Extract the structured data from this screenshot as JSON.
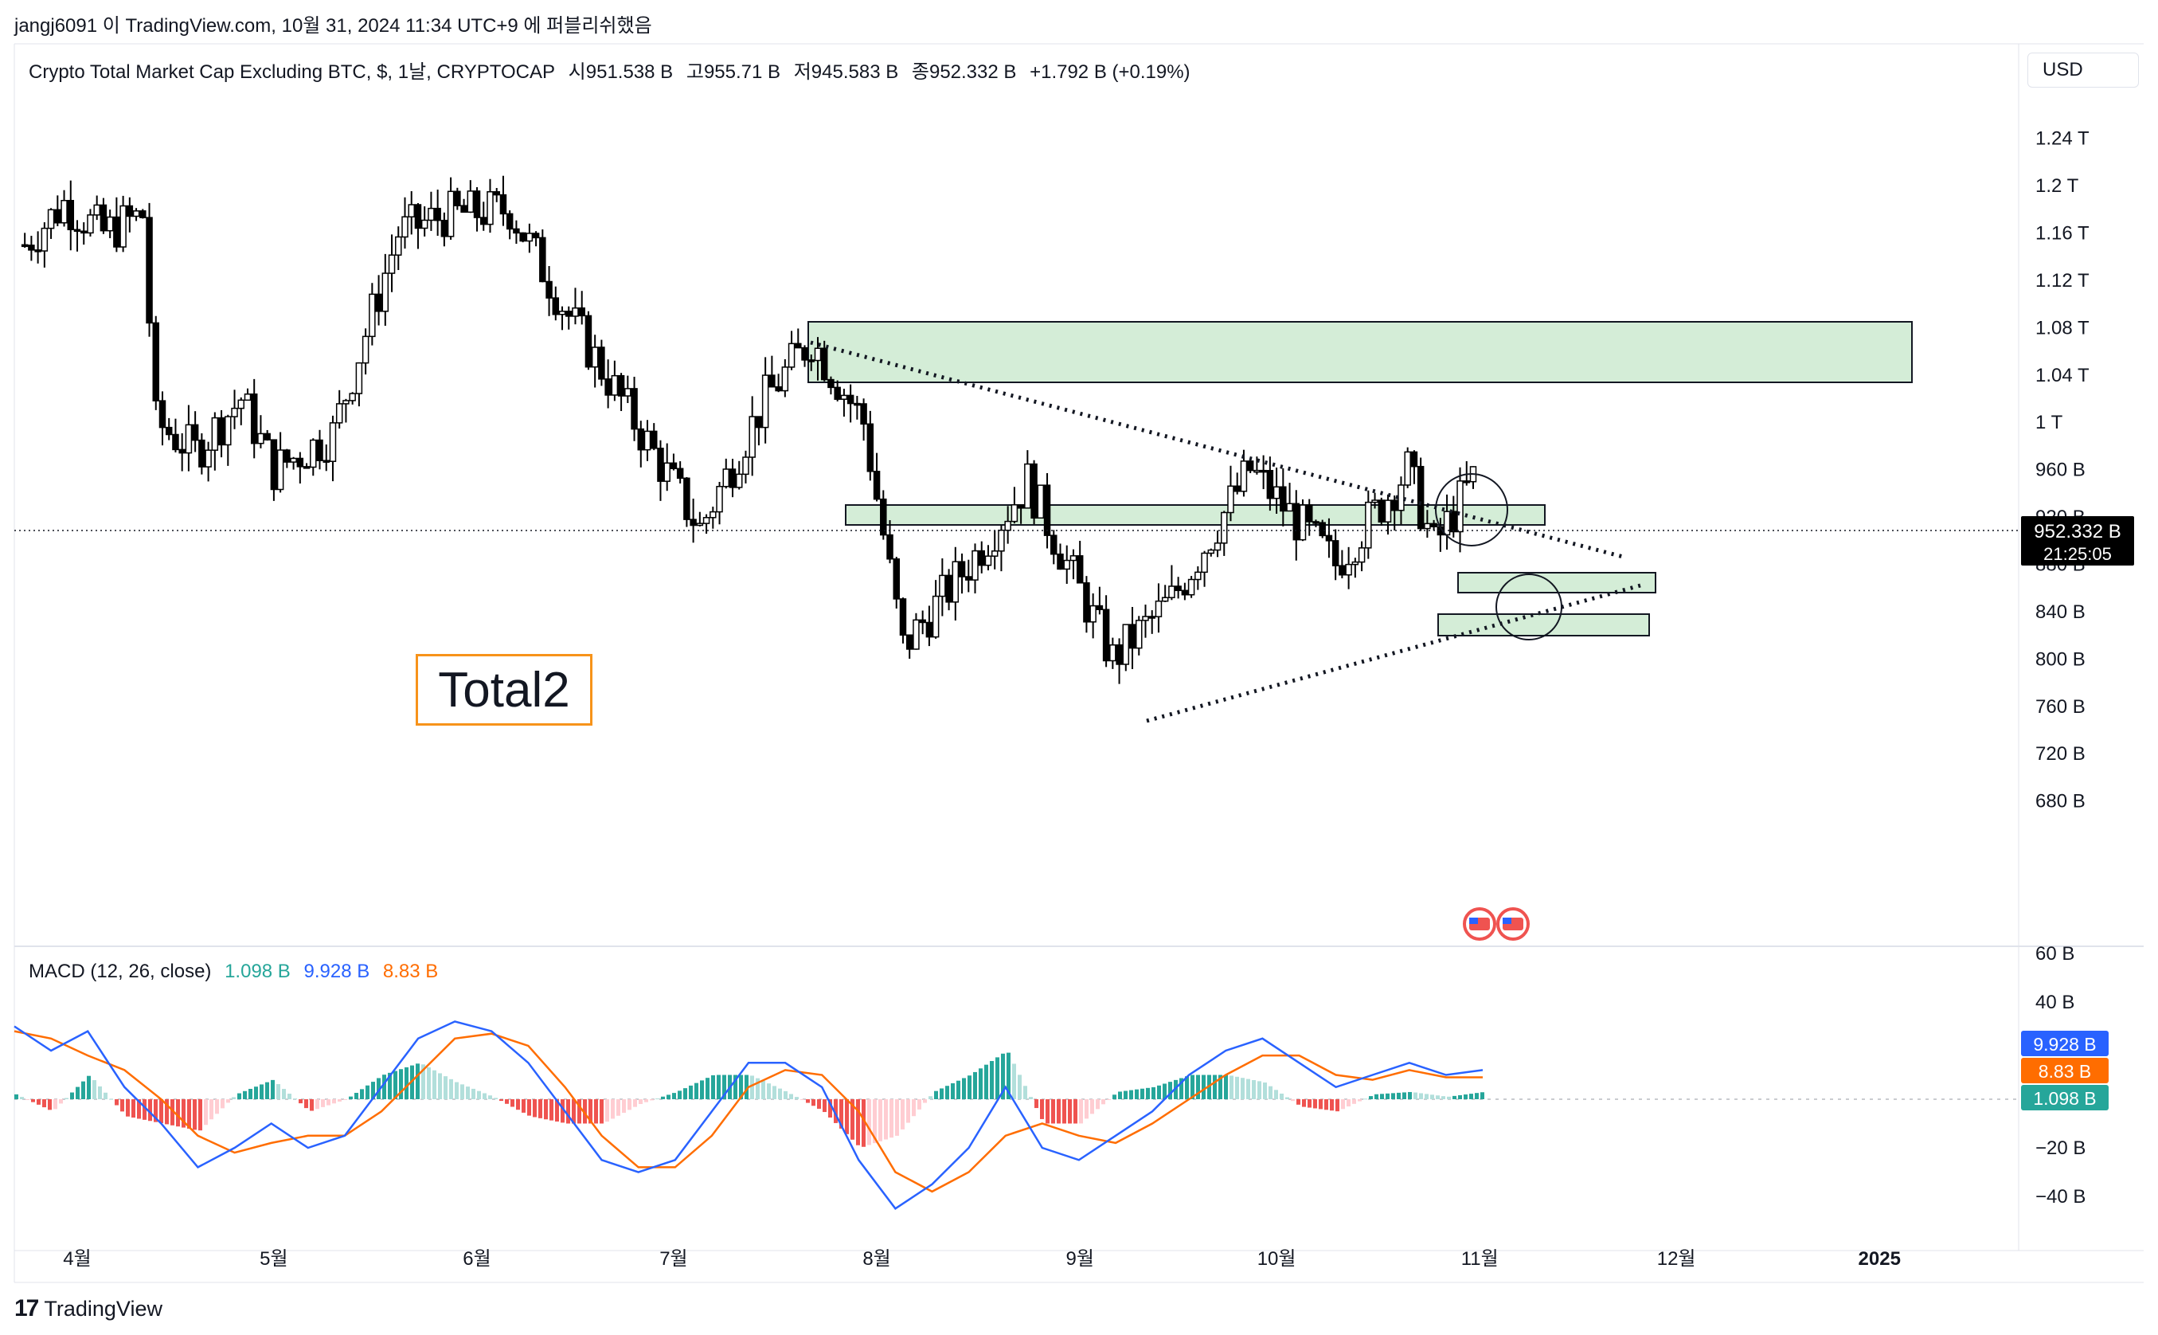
{
  "attribution": "jangj6091 이 TradingView.com, 10월 31, 2024 11:34 UTC+9 에 퍼블리쉬했음",
  "legend": {
    "symbol": "Crypto Total Market Cap Excluding BTC, $, 1날, CRYPTOCAP",
    "open": "시951.538 B",
    "high": "고955.71 B",
    "low": "저945.583 B",
    "close": "종952.332 B",
    "change": "+1.792 B (+0.19%)"
  },
  "currency": "USD",
  "annotation_text": "Total2",
  "macd_legend": {
    "label": "MACD (12, 26, close)",
    "histogram": "1.098 B",
    "macd": "9.928 B",
    "signal": "8.83 B"
  },
  "footer": {
    "logo": "17",
    "brand": "TradingView"
  },
  "colors": {
    "up": "#ffffff",
    "down": "#000000",
    "wick": "#000000",
    "zone_fill": "#d4edd7",
    "macd_line": "#2962ff",
    "signal_line": "#ff6d00",
    "hist_up_strong": "#26a69a",
    "hist_up_weak": "#b2dfdb",
    "hist_down_strong": "#ef5350",
    "hist_down_weak": "#ffcdd2",
    "annotation_border": "#f7931a"
  },
  "chart_data": [
    {
      "type": "candlestick",
      "title": "Crypto Total Market Cap Excluding BTC, $, 1날, CRYPTOCAP",
      "x_ticks": [
        "4월",
        "5월",
        "6월",
        "7월",
        "8월",
        "9월",
        "10월",
        "11월",
        "12월",
        "2025"
      ],
      "y_ticks": [
        "1.24 T",
        "1.2 T",
        "1.16 T",
        "1.12 T",
        "1.08 T",
        "1.04 T",
        "1 T",
        "960 B",
        "920 B",
        "880 B",
        "840 B",
        "800 B",
        "760 B",
        "720 B",
        "680 B"
      ],
      "y_unit": "B (billion USD)",
      "ylim": [
        675,
        1250
      ],
      "last_price": "952.332 B",
      "countdown": "21:25:05",
      "grid": false,
      "close_series_approx": [
        {
          "date": "2024-03-24",
          "close": 1150
        },
        {
          "date": "2024-03-30",
          "close": 1185
        },
        {
          "date": "2024-04-05",
          "close": 1160
        },
        {
          "date": "2024-04-11",
          "close": 1175
        },
        {
          "date": "2024-04-13",
          "close": 1000
        },
        {
          "date": "2024-04-19",
          "close": 975
        },
        {
          "date": "2024-04-26",
          "close": 1020
        },
        {
          "date": "2024-05-01",
          "close": 960
        },
        {
          "date": "2024-05-10",
          "close": 990
        },
        {
          "date": "2024-05-20",
          "close": 1160
        },
        {
          "date": "2024-05-27",
          "close": 1175
        },
        {
          "date": "2024-06-06",
          "close": 1180
        },
        {
          "date": "2024-06-15",
          "close": 1090
        },
        {
          "date": "2024-06-24",
          "close": 1010
        },
        {
          "date": "2024-07-05",
          "close": 910
        },
        {
          "date": "2024-07-15",
          "close": 1020
        },
        {
          "date": "2024-07-22",
          "close": 1070
        },
        {
          "date": "2024-07-30",
          "close": 1000
        },
        {
          "date": "2024-08-05",
          "close": 810
        },
        {
          "date": "2024-08-15",
          "close": 880
        },
        {
          "date": "2024-08-24",
          "close": 950
        },
        {
          "date": "2024-09-06",
          "close": 800
        },
        {
          "date": "2024-09-15",
          "close": 850
        },
        {
          "date": "2024-09-27",
          "close": 960
        },
        {
          "date": "2024-10-10",
          "close": 880
        },
        {
          "date": "2024-10-21",
          "close": 960
        },
        {
          "date": "2024-10-25",
          "close": 895
        },
        {
          "date": "2024-10-31",
          "close": 952.332
        }
      ],
      "zones_value_ranges": [
        {
          "from": 1050,
          "to": 1090
        },
        {
          "from": 955,
          "to": 970
        },
        {
          "from": 911,
          "to": 925
        },
        {
          "from": 883,
          "to": 898
        }
      ]
    },
    {
      "type": "macd",
      "title": "MACD (12, 26, close)",
      "y_ticks": [
        "60 B",
        "40 B",
        "−20 B",
        "−40 B"
      ],
      "ylim": [
        -50,
        62
      ],
      "macd_value": "9.928 B",
      "signal_value": "8.83 B",
      "histogram_value": "1.098 B",
      "macd_series_approx": [
        30,
        20,
        28,
        5,
        -10,
        -28,
        -20,
        -10,
        -20,
        -15,
        5,
        25,
        32,
        28,
        15,
        -5,
        -25,
        -30,
        -25,
        -5,
        15,
        15,
        5,
        -25,
        -45,
        -35,
        -20,
        5,
        -20,
        -25,
        -15,
        -5,
        10,
        20,
        25,
        15,
        5,
        10,
        15,
        10,
        12
      ],
      "signal_series_approx": [
        28,
        25,
        18,
        12,
        0,
        -15,
        -22,
        -18,
        -15,
        -15,
        -5,
        10,
        25,
        27,
        22,
        5,
        -15,
        -28,
        -28,
        -15,
        5,
        12,
        10,
        -5,
        -30,
        -38,
        -30,
        -15,
        -10,
        -15,
        -18,
        -10,
        0,
        10,
        18,
        18,
        10,
        8,
        12,
        9,
        9
      ]
    }
  ]
}
